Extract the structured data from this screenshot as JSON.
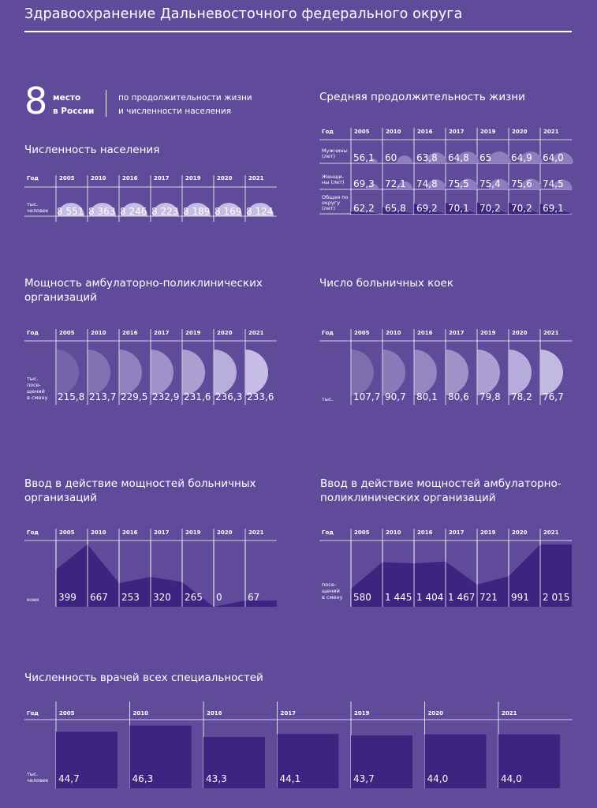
{
  "page": {
    "title": "Здравоохранение Дальневосточного федерального округа"
  },
  "rank": {
    "number": "8",
    "line1": "место",
    "line2": "в России",
    "desc1": "по продолжительности жизни",
    "desc2": "и численности населения"
  },
  "chart_data": [
    {
      "id": "population",
      "type": "table",
      "title": "Численность населения",
      "header_label": "Год",
      "categories": [
        "2005",
        "2010",
        "2016",
        "2017",
        "2019",
        "2020",
        "2021"
      ],
      "rows": [
        {
          "label": [
            "тыс.",
            "человек"
          ],
          "values": [
            8551,
            8363,
            8246,
            8223,
            8189,
            8169,
            8124
          ],
          "display": [
            "8 551",
            "8 363",
            "8 246",
            "8 223",
            "8 189",
            "8 169",
            "8 124"
          ]
        }
      ]
    },
    {
      "id": "life-expectancy",
      "type": "table",
      "title": "Средняя продолжительность жизни",
      "header_label": "Год",
      "categories": [
        "2005",
        "2010",
        "2016",
        "2017",
        "2019",
        "2020",
        "2021"
      ],
      "rows": [
        {
          "label": [
            "Мужчины",
            "(лет)"
          ],
          "values": [
            56.1,
            60,
            63.8,
            64.8,
            65,
            64.9,
            64.0
          ],
          "display": [
            "56,1",
            "60",
            "63,8",
            "64,8",
            "65",
            "64,9",
            "64,0"
          ]
        },
        {
          "label": [
            "Женщи-",
            "ны (лет)"
          ],
          "values": [
            69.3,
            72.1,
            74.8,
            75.5,
            75.4,
            75.6,
            74.5
          ],
          "display": [
            "69,3",
            "72,1",
            "74,8",
            "75,5",
            "75,4",
            "75,6",
            "74,5"
          ]
        },
        {
          "label": [
            "Общая по",
            "округу",
            "(лет)"
          ],
          "values": [
            62.2,
            65.8,
            69.2,
            70.1,
            70.2,
            70.2,
            69.1
          ],
          "display": [
            "62,2",
            "65,8",
            "69,2",
            "70,1",
            "70,2",
            "70,2",
            "69,1"
          ]
        }
      ]
    },
    {
      "id": "outpatient-capacity",
      "type": "table",
      "title": [
        "Мощность амбулаторно-поликлинических",
        "организаций"
      ],
      "header_label": "Год",
      "categories": [
        "2005",
        "2010",
        "2016",
        "2017",
        "2019",
        "2020",
        "2021"
      ],
      "rows": [
        {
          "label": [
            "тыс.",
            "посе-",
            "щений",
            "в смену"
          ],
          "values": [
            215.8,
            213.7,
            229.5,
            232.9,
            231.6,
            236.3,
            233.6
          ],
          "display": [
            "215,8",
            "213,7",
            "229,5",
            "232,9",
            "231,6",
            "236,3",
            "233,6"
          ]
        }
      ]
    },
    {
      "id": "hospital-beds",
      "type": "table",
      "title": "Число больничных коек",
      "header_label": "Год",
      "categories": [
        "2005",
        "2010",
        "2016",
        "2017",
        "2019",
        "2020",
        "2021"
      ],
      "rows": [
        {
          "label": [
            "тыс."
          ],
          "values": [
            107.7,
            90.7,
            80.1,
            80.6,
            79.8,
            78.2,
            76.7
          ],
          "display": [
            "107,7",
            "90,7",
            "80,1",
            "80,6",
            "79,8",
            "78,2",
            "76,7"
          ]
        }
      ]
    },
    {
      "id": "hospital-commissioning",
      "type": "area",
      "title": [
        "Ввод в действие мощностей больничных",
        "организаций"
      ],
      "header_label": "Год",
      "categories": [
        "2005",
        "2010",
        "2016",
        "2017",
        "2019",
        "2020",
        "2021"
      ],
      "rows": [
        {
          "label": [
            "коек"
          ],
          "values": [
            399,
            667,
            253,
            320,
            265,
            0,
            67
          ],
          "display": [
            "399",
            "667",
            "253",
            "320",
            "265",
            "0",
            "67"
          ]
        }
      ]
    },
    {
      "id": "outpatient-commissioning",
      "type": "area",
      "title": [
        "Ввод в действие мощностей амбулаторно-",
        "поликлинических организаций"
      ],
      "header_label": "Год",
      "categories": [
        "2005",
        "2010",
        "2016",
        "2017",
        "2019",
        "2020",
        "2021"
      ],
      "rows": [
        {
          "label": [
            "посе-",
            "щений",
            "в смену"
          ],
          "values": [
            580,
            1445,
            1404,
            1467,
            721,
            991,
            2015
          ],
          "display": [
            "580",
            "1 445",
            "1 404",
            "1 467",
            "721",
            "991",
            "2 015"
          ]
        }
      ]
    },
    {
      "id": "doctors",
      "type": "bar",
      "title": "Численность врачей всех специальностей",
      "header_label": "Год",
      "categories": [
        "2005",
        "2010",
        "2016",
        "2017",
        "2019",
        "2020",
        "2021"
      ],
      "rows": [
        {
          "label": [
            "тыс.",
            "человек"
          ],
          "values": [
            44.7,
            46.3,
            43.3,
            44.1,
            43.7,
            44.0,
            44.0
          ],
          "display": [
            "44,7",
            "46,3",
            "43,3",
            "44,1",
            "43,7",
            "44,0",
            "44,0"
          ]
        }
      ]
    }
  ],
  "colors": {
    "background": "#5f4b99",
    "dark": "#3c2480",
    "light_shape": "#c6bde6",
    "mid_shape": "#8d7ec0",
    "text": "#ffffff"
  }
}
